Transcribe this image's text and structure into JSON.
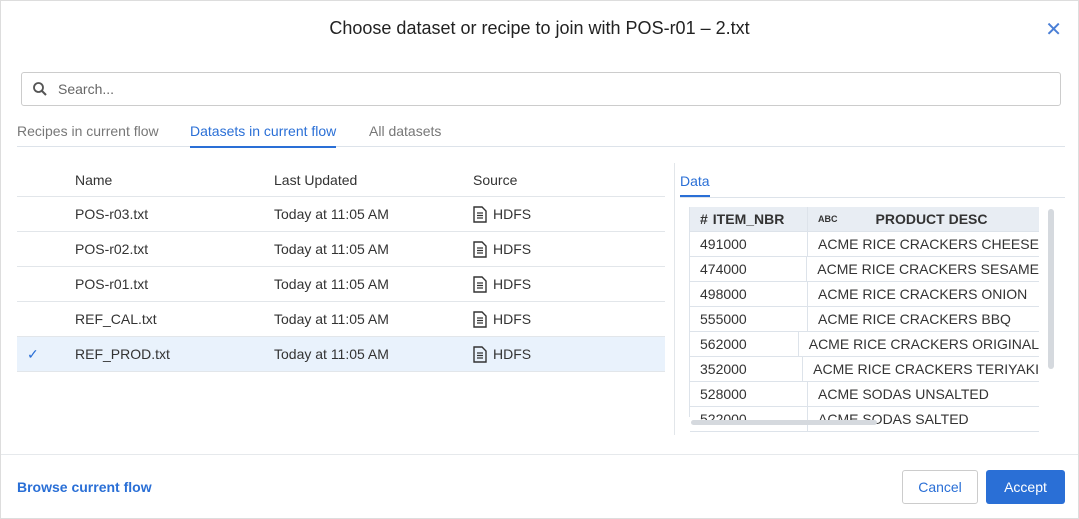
{
  "dialog": {
    "title": "Choose dataset or recipe to join with POS-r01 – 2.txt",
    "close_icon": "close-icon"
  },
  "search": {
    "placeholder": "Search...",
    "value": ""
  },
  "tabs": [
    {
      "label": "Recipes in current flow",
      "active": false
    },
    {
      "label": "Datasets in current flow",
      "active": true
    },
    {
      "label": "All datasets",
      "active": false
    }
  ],
  "table": {
    "headers": [
      "Name",
      "Last Updated",
      "Source"
    ],
    "rows": [
      {
        "name": "POS-r03.txt",
        "updated": "Today at 11:05 AM",
        "source": "HDFS",
        "selected": false
      },
      {
        "name": "POS-r02.txt",
        "updated": "Today at 11:05 AM",
        "source": "HDFS",
        "selected": false
      },
      {
        "name": "POS-r01.txt",
        "updated": "Today at 11:05 AM",
        "source": "HDFS",
        "selected": false
      },
      {
        "name": "REF_CAL.txt",
        "updated": "Today at 11:05 AM",
        "source": "HDFS",
        "selected": false
      },
      {
        "name": "REF_PROD.txt",
        "updated": "Today at 11:05 AM",
        "source": "HDFS",
        "selected": true
      }
    ]
  },
  "preview": {
    "tab": "Data",
    "columns": [
      {
        "type": "#",
        "name": "ITEM_NBR"
      },
      {
        "type": "ABC",
        "name": "PRODUCT DESC"
      }
    ],
    "rows": [
      [
        "491000",
        "ACME RICE CRACKERS CHEESE"
      ],
      [
        "474000",
        "ACME RICE CRACKERS SESAME"
      ],
      [
        "498000",
        "ACME RICE CRACKERS ONION"
      ],
      [
        "555000",
        "ACME RICE CRACKERS BBQ"
      ],
      [
        "562000",
        "ACME RICE CRACKERS ORIGINAL"
      ],
      [
        "352000",
        "ACME RICE CRACKERS TERIYAKI"
      ],
      [
        "528000",
        "ACME SODAS UNSALTED"
      ],
      [
        "522000",
        "ACME SODAS SALTED"
      ]
    ]
  },
  "footer": {
    "browse": "Browse current flow",
    "cancel": "Cancel",
    "accept": "Accept"
  },
  "colors": {
    "accent": "#2a6fd6",
    "selected_row": "#e9f2fc"
  }
}
